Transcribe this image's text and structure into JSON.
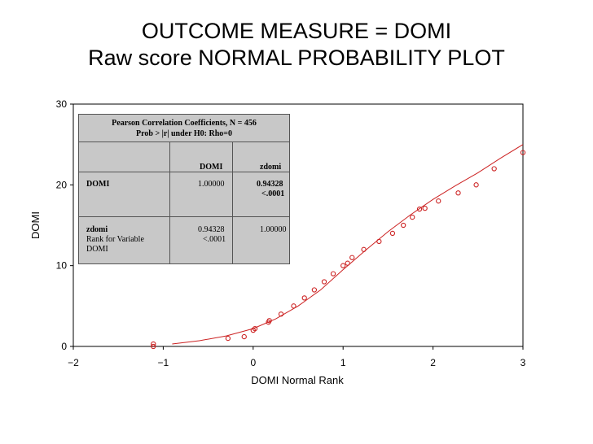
{
  "title_line1": "OUTCOME MEASURE = DOMI",
  "title_line2": "Raw score NORMAL PROBABILITY PLOT",
  "colors": {
    "series": "#cc2222",
    "table_bg": "#c8c8c8"
  },
  "table": {
    "header_line1": "Pearson Correlation Coefficients, N = 456",
    "header_line2": "Prob > |r| under H0: Rho=0",
    "col1": "DOMI",
    "col2": "zdomi",
    "row1_label": "DOMI",
    "row1_c1": "1.00000",
    "row1_c2_r": "0.94328",
    "row1_c2_p": "<.0001",
    "row2_label": "zdomi",
    "row2_sub1": "Rank for Variable",
    "row2_sub2": "DOMI",
    "row2_c1_r": "0.94328",
    "row2_c1_p": "<.0001",
    "row2_c2": "1.00000"
  },
  "chart_data": {
    "type": "scatter",
    "xlabel": "DOMI  Normal  Rank",
    "ylabel": "DOMI",
    "xlim": [
      -2,
      3
    ],
    "ylim": [
      0,
      30
    ],
    "xticks": [
      "−2",
      "−1",
      "0",
      "1",
      "2",
      "3"
    ],
    "yticks": [
      "0",
      "10",
      "20",
      "30"
    ],
    "grid": false,
    "points": [
      {
        "x": -1.11,
        "y": 0
      },
      {
        "x": -1.11,
        "y": 0.3
      },
      {
        "x": -0.28,
        "y": 1
      },
      {
        "x": -0.1,
        "y": 1.2
      },
      {
        "x": 0.0,
        "y": 2
      },
      {
        "x": 0.02,
        "y": 2.2
      },
      {
        "x": 0.17,
        "y": 3
      },
      {
        "x": 0.18,
        "y": 3.2
      },
      {
        "x": 0.31,
        "y": 4
      },
      {
        "x": 0.45,
        "y": 5
      },
      {
        "x": 0.57,
        "y": 6
      },
      {
        "x": 0.68,
        "y": 7
      },
      {
        "x": 0.79,
        "y": 8
      },
      {
        "x": 0.89,
        "y": 9
      },
      {
        "x": 1.0,
        "y": 10
      },
      {
        "x": 1.05,
        "y": 10.3
      },
      {
        "x": 1.1,
        "y": 11
      },
      {
        "x": 1.23,
        "y": 12
      },
      {
        "x": 1.4,
        "y": 13
      },
      {
        "x": 1.55,
        "y": 14
      },
      {
        "x": 1.67,
        "y": 15
      },
      {
        "x": 1.77,
        "y": 16
      },
      {
        "x": 1.85,
        "y": 17
      },
      {
        "x": 1.91,
        "y": 17.1
      },
      {
        "x": 2.06,
        "y": 18
      },
      {
        "x": 2.28,
        "y": 19
      },
      {
        "x": 2.48,
        "y": 20
      },
      {
        "x": 2.68,
        "y": 22
      },
      {
        "x": 3.0,
        "y": 24
      }
    ],
    "fit_curve": [
      {
        "x": -0.9,
        "y": 0.3
      },
      {
        "x": -0.6,
        "y": 0.7
      },
      {
        "x": -0.3,
        "y": 1.3
      },
      {
        "x": 0.0,
        "y": 2.2
      },
      {
        "x": 0.25,
        "y": 3.4
      },
      {
        "x": 0.5,
        "y": 5.0
      },
      {
        "x": 0.75,
        "y": 7.0
      },
      {
        "x": 1.0,
        "y": 9.5
      },
      {
        "x": 1.25,
        "y": 11.9
      },
      {
        "x": 1.5,
        "y": 14.2
      },
      {
        "x": 1.75,
        "y": 16.3
      },
      {
        "x": 2.0,
        "y": 18.2
      },
      {
        "x": 2.25,
        "y": 19.9
      },
      {
        "x": 2.5,
        "y": 21.5
      },
      {
        "x": 2.75,
        "y": 23.3
      },
      {
        "x": 3.0,
        "y": 25.0
      }
    ]
  }
}
